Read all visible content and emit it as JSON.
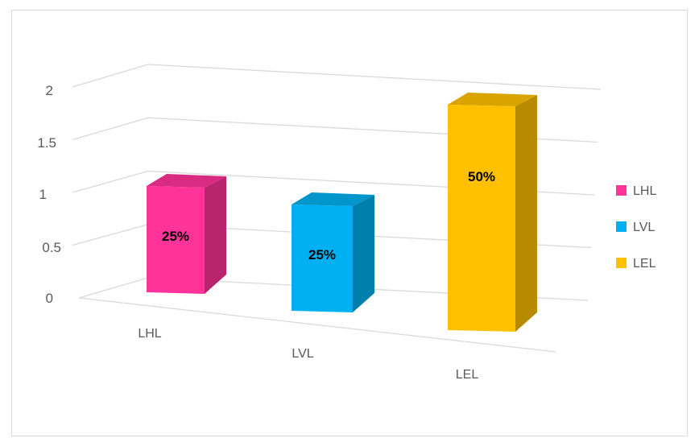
{
  "chart_data": {
    "type": "bar",
    "style": "3d-column",
    "categories": [
      "LHL",
      "LVL",
      "LEL"
    ],
    "values": [
      1,
      1,
      2
    ],
    "data_labels": [
      "25%",
      "25%",
      "50%"
    ],
    "colors": [
      "#ff3399",
      "#00b0f0",
      "#ffc000"
    ],
    "ylim": [
      0,
      2
    ],
    "yticks": [
      "0",
      "0.5",
      "1",
      "1.5",
      "2"
    ],
    "grid": true,
    "legend": {
      "position": "right",
      "entries": [
        "LHL",
        "LVL",
        "LEL"
      ]
    },
    "title": "",
    "xlabel": "",
    "ylabel": ""
  }
}
